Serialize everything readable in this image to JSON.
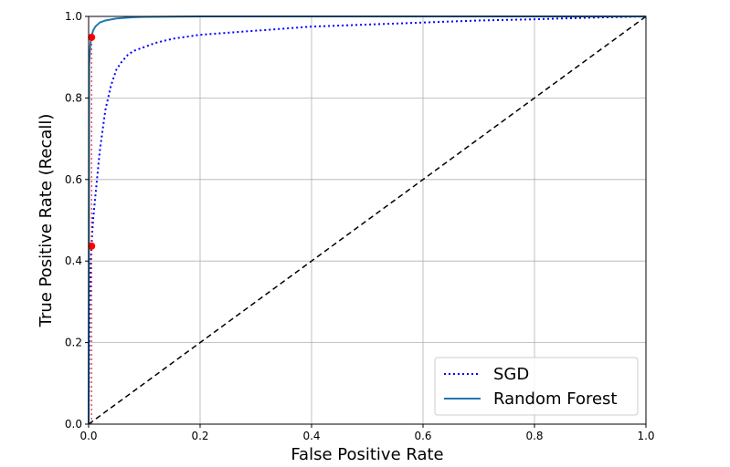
{
  "chart_data": {
    "type": "line",
    "xlabel": "False Positive Rate",
    "ylabel": "True Positive Rate (Recall)",
    "xlim": [
      0,
      1
    ],
    "ylim": [
      0,
      1
    ],
    "xticks": [
      "0.0",
      "0.2",
      "0.4",
      "0.6",
      "0.8",
      "1.0"
    ],
    "yticks": [
      "0.0",
      "0.2",
      "0.4",
      "0.6",
      "0.8",
      "1.0"
    ],
    "grid": true,
    "legend_position": "lower-right",
    "series": [
      {
        "name": "SGD",
        "style": "dotted",
        "color": "#0000ff",
        "x": [
          0,
          0.002,
          0.004,
          0.006,
          0.008,
          0.01,
          0.015,
          0.02,
          0.03,
          0.04,
          0.05,
          0.06,
          0.07,
          0.08,
          0.1,
          0.12,
          0.15,
          0.2,
          0.3,
          0.4,
          0.5,
          0.6,
          0.7,
          0.8,
          0.9,
          1.0
        ],
        "y": [
          0,
          0.3,
          0.4,
          0.46,
          0.5,
          0.53,
          0.6,
          0.67,
          0.77,
          0.83,
          0.87,
          0.89,
          0.905,
          0.915,
          0.925,
          0.935,
          0.945,
          0.955,
          0.965,
          0.975,
          0.98,
          0.985,
          0.99,
          0.993,
          0.997,
          1.0
        ]
      },
      {
        "name": "Random Forest",
        "style": "solid",
        "color": "#1f77b4",
        "x": [
          0,
          0.001,
          0.003,
          0.005,
          0.008,
          0.012,
          0.02,
          0.03,
          0.05,
          0.08,
          0.1,
          0.2,
          0.4,
          0.6,
          0.8,
          1.0
        ],
        "y": [
          0,
          0.88,
          0.93,
          0.95,
          0.965,
          0.975,
          0.985,
          0.99,
          0.995,
          0.998,
          0.999,
          1.0,
          1.0,
          1.0,
          1.0,
          1.0
        ]
      }
    ],
    "reference_line": {
      "x": [
        0,
        1
      ],
      "y": [
        0,
        1
      ],
      "style": "dashed",
      "color": "#000000"
    },
    "threshold_line": {
      "x": 0.0053,
      "y0": 0,
      "y1": 0.95,
      "style": "dotted",
      "color": "#ff0000"
    },
    "points": [
      {
        "x": 0.0053,
        "y": 0.4368,
        "color": "#ff0000"
      },
      {
        "x": 0.0053,
        "y": 0.9487,
        "color": "#ff0000"
      }
    ]
  }
}
